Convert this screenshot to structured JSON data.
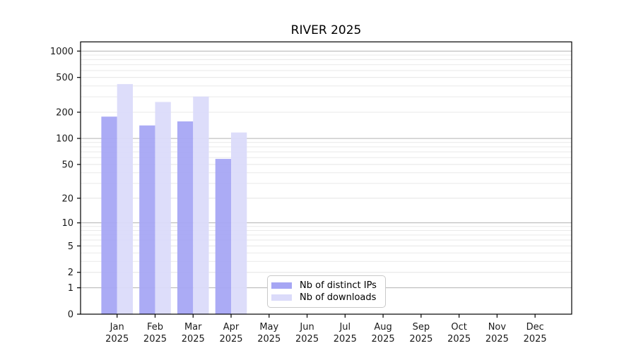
{
  "figure": {
    "background": "#ffffff"
  },
  "chart_data": {
    "type": "bar",
    "title": "RIVER 2025",
    "categories": [
      "Jan",
      "Feb",
      "Mar",
      "Apr",
      "May",
      "Jun",
      "Jul",
      "Aug",
      "Sep",
      "Oct",
      "Nov",
      "Dec"
    ],
    "category_year_line": "2025",
    "series": [
      {
        "name": "Nb of distinct IPs",
        "color": "#a6a6f4",
        "values": [
          178,
          141,
          157,
          58,
          null,
          null,
          null,
          null,
          null,
          null,
          null,
          null
        ]
      },
      {
        "name": "Nb of downloads",
        "color": "#dbdbfa",
        "values": [
          420,
          262,
          302,
          117,
          null,
          null,
          null,
          null,
          null,
          null,
          null,
          null
        ]
      }
    ],
    "xlabel": "",
    "ylabel": "",
    "y_ticks": [
      0,
      1,
      2,
      5,
      10,
      20,
      50,
      100,
      200,
      500,
      1000
    ],
    "y_scale": "log10(value+1)",
    "ylim": [
      0,
      1274
    ],
    "major_grid_values": [
      1,
      10,
      100,
      1000
    ],
    "grid": "both",
    "legend_position": "lower center-left inside plot"
  },
  "colors": {
    "major_grid": "#b3b3b3",
    "minor_grid": "#e9e9e9",
    "axis": "#000000",
    "tick_text": "#1a1a1a",
    "legend_border": "#c9c9c9"
  }
}
